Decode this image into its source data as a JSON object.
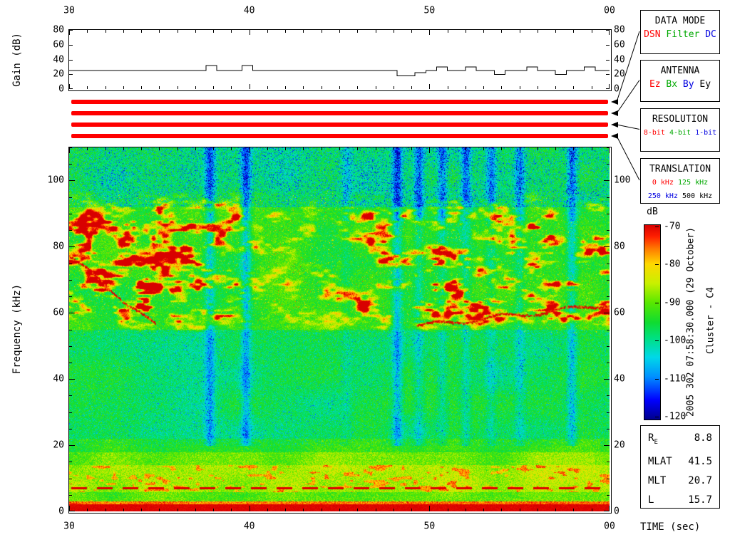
{
  "side_annotations": {
    "timestamp": "2005 302 07:58:30.000 (29 October)",
    "spacecraft": "Cluster - C4"
  },
  "legend_boxes": [
    {
      "title": "DATA MODE",
      "lines": [
        [
          {
            "text": "DSN",
            "color": "#ff0000"
          },
          {
            "text": "Filter",
            "color": "#00a800"
          },
          {
            "text": "DC",
            "color": "#0000e0"
          }
        ]
      ]
    },
    {
      "title": "ANTENNA",
      "lines": [
        [
          {
            "text": "Ez",
            "color": "#ff0000"
          },
          {
            "text": "Bx",
            "color": "#00a800"
          },
          {
            "text": "By",
            "color": "#0000e0"
          },
          {
            "text": "Ey",
            "color": "#000000"
          }
        ]
      ]
    },
    {
      "title": "RESOLUTION",
      "lines": [
        [
          {
            "text": "8-bit",
            "color": "#ff0000"
          },
          {
            "text": "4-bit",
            "color": "#00a800"
          },
          {
            "text": "1-bit",
            "color": "#0000e0"
          }
        ]
      ]
    },
    {
      "title": "TRANSLATION",
      "lines": [
        [
          {
            "text": "0 kHz",
            "color": "#ff0000"
          },
          {
            "text": "125 kHz",
            "color": "#00a800"
          }
        ],
        [
          {
            "text": "250 kHz",
            "color": "#0000e0"
          },
          {
            "text": "500 kHz",
            "color": "#000000"
          }
        ]
      ]
    }
  ],
  "info_box": {
    "rows": [
      {
        "label": "R",
        "sub": "E",
        "value": "8.8"
      },
      {
        "label": "MLAT",
        "sub": "",
        "value": "41.5"
      },
      {
        "label": "MLT",
        "sub": "",
        "value": "20.7"
      },
      {
        "label": "L",
        "sub": "",
        "value": "15.7"
      }
    ]
  },
  "mode_bars": {
    "count": 4,
    "color": "#ff0000"
  },
  "chart_data": [
    {
      "type": "line",
      "panel": "gain",
      "ylabel": "Gain (dB)",
      "xlabel": "",
      "x_tick_labels": [
        "30",
        "40",
        "50",
        "00"
      ],
      "x_range_sec": [
        30,
        60
      ],
      "ylim": [
        0,
        80
      ],
      "y_ticks": [
        0,
        20,
        40,
        60,
        80
      ],
      "series": [
        {
          "name": "gain_db",
          "points": [
            [
              30,
              25
            ],
            [
              37.6,
              25
            ],
            [
              37.6,
              32
            ],
            [
              38.2,
              32
            ],
            [
              38.2,
              25
            ],
            [
              39.6,
              25
            ],
            [
              39.6,
              32
            ],
            [
              40.2,
              32
            ],
            [
              40.2,
              25
            ],
            [
              48.2,
              25
            ],
            [
              48.2,
              18
            ],
            [
              49.2,
              18
            ],
            [
              49.2,
              22
            ],
            [
              49.8,
              22
            ],
            [
              49.8,
              25
            ],
            [
              50.4,
              25
            ],
            [
              50.4,
              30
            ],
            [
              51,
              30
            ],
            [
              51,
              25
            ],
            [
              52,
              25
            ],
            [
              52,
              30
            ],
            [
              52.6,
              30
            ],
            [
              52.6,
              25
            ],
            [
              53.6,
              25
            ],
            [
              53.6,
              20
            ],
            [
              54.2,
              20
            ],
            [
              54.2,
              25
            ],
            [
              55.4,
              25
            ],
            [
              55.4,
              30
            ],
            [
              56,
              30
            ],
            [
              56,
              25
            ],
            [
              57,
              25
            ],
            [
              57,
              20
            ],
            [
              57.6,
              20
            ],
            [
              57.6,
              25
            ],
            [
              58.6,
              25
            ],
            [
              58.6,
              30
            ],
            [
              59.2,
              30
            ],
            [
              59.2,
              25
            ],
            [
              60,
              25
            ]
          ]
        }
      ]
    },
    {
      "type": "heatmap",
      "panel": "spectrogram",
      "ylabel": "Frequency (kHz)",
      "xlabel": "TIME (sec)",
      "x_tick_labels": [
        "30",
        "40",
        "50",
        "00"
      ],
      "x_range_sec": [
        30,
        60
      ],
      "ylim_khz": [
        0,
        110
      ],
      "y_ticks": [
        0,
        20,
        40,
        60,
        80,
        100
      ],
      "value_range_db": [
        -120,
        -70
      ],
      "colorbar_label": "dB",
      "colorbar_ticks": [
        "-70",
        "-80",
        "-90",
        "-100",
        "-110",
        "-120"
      ],
      "colormap_stops": [
        [
          0,
          "#00008c"
        ],
        [
          0.1,
          "#0000ff"
        ],
        [
          0.22,
          "#0090ff"
        ],
        [
          0.32,
          "#00d8e8"
        ],
        [
          0.42,
          "#00e080"
        ],
        [
          0.5,
          "#10dc30"
        ],
        [
          0.6,
          "#58e800"
        ],
        [
          0.7,
          "#c8f000"
        ],
        [
          0.8,
          "#ffd800"
        ],
        [
          0.88,
          "#ff7800"
        ],
        [
          0.94,
          "#ff2000"
        ],
        [
          1,
          "#d80000"
        ]
      ],
      "seed": 20051029,
      "features": {
        "background_db": -96.5,
        "bottom_band": {
          "f_khz": [
            0,
            2.2
          ],
          "db": -70
        },
        "lf_hiss_band": {
          "f_khz": [
            6,
            14
          ],
          "db": -86
        },
        "dashed_line": {
          "f_khz": 7,
          "db": -72
        },
        "auroral_band": {
          "f_khz": [
            55,
            95
          ],
          "peak_db": -68
        },
        "time_envelope": [
          [
            30,
            1.1
          ],
          [
            37,
            1.05
          ],
          [
            38.5,
            0.85
          ],
          [
            40.5,
            0.42
          ],
          [
            44,
            0.45
          ],
          [
            46.5,
            0.8
          ],
          [
            48.5,
            0.95
          ],
          [
            60,
            0.95
          ]
        ],
        "rising_tone": {
          "from": [
            49.3,
            56
          ],
          "to": [
            60,
            62.5
          ],
          "db": -72
        },
        "falling_tone": {
          "from": [
            30,
            77
          ],
          "to": [
            34.8,
            56
          ],
          "db": -71
        },
        "interference_stripes": [
          {
            "t": 37.8,
            "strength": 0.9,
            "full": true
          },
          {
            "t": 39.8,
            "strength": 1.0,
            "full": true
          },
          {
            "t": 45.4,
            "strength": 0.4,
            "full": false
          },
          {
            "t": 48.2,
            "strength": 1.0,
            "full": true
          },
          {
            "t": 49.4,
            "strength": 0.85,
            "full": false
          },
          {
            "t": 50.7,
            "strength": 0.8,
            "full": false
          },
          {
            "t": 52.0,
            "strength": 0.9,
            "full": false
          },
          {
            "t": 53.4,
            "strength": 0.7,
            "full": false
          },
          {
            "t": 55.0,
            "strength": 0.8,
            "full": false
          },
          {
            "t": 57.9,
            "strength": 0.9,
            "full": true
          }
        ]
      }
    }
  ]
}
